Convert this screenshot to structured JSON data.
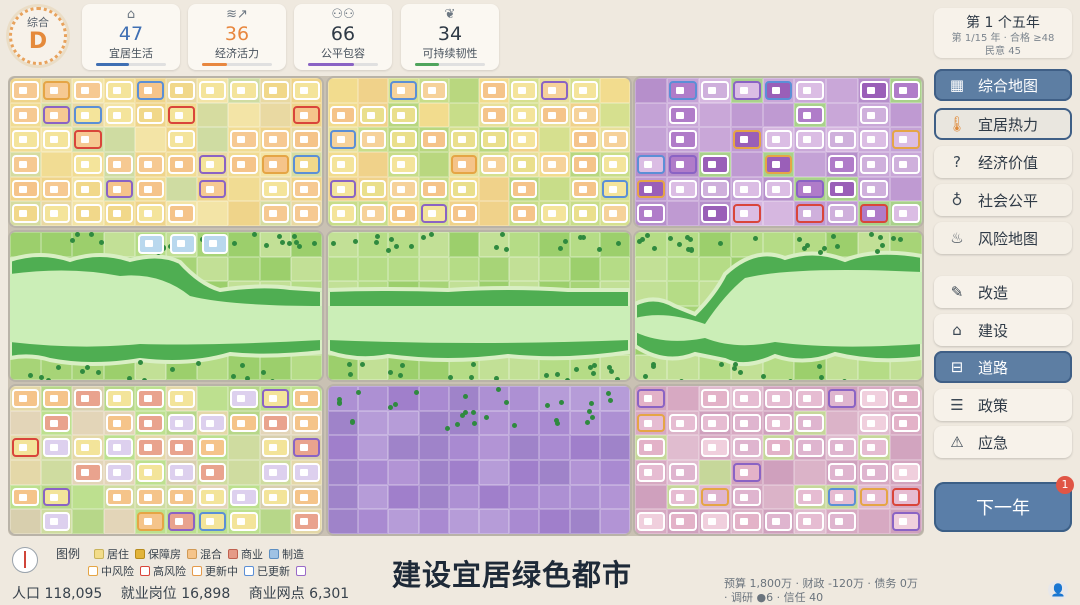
{
  "grade": {
    "label": "综合",
    "value": "D"
  },
  "stats": [
    {
      "icon": "house-icon",
      "value": "47",
      "label": "宜居生活",
      "color": "#3f6fb3",
      "level": 0.47
    },
    {
      "icon": "coins-growth-icon",
      "value": "36",
      "label": "经济活力",
      "color": "#e8873f",
      "level": 0.36
    },
    {
      "icon": "people-icon",
      "value": "66",
      "label": "公平包容",
      "color": "#8a63c4",
      "level": 0.66
    },
    {
      "icon": "leaf-icon",
      "value": "34",
      "label": "可持续韧性",
      "color": "#4fa45c",
      "level": 0.34
    }
  ],
  "period": {
    "title": "第 1 个五年",
    "subtitle": "第 1/15 年 · 合格 ≥48",
    "morale": "民意 45"
  },
  "views": [
    {
      "label": "综合地图",
      "icon": "map-icon",
      "active": true
    },
    {
      "label": "宜居热力",
      "icon": "thermometer-icon",
      "active": true
    },
    {
      "label": "经济价值",
      "icon": "question-icon",
      "active": false
    },
    {
      "label": "社会公平",
      "icon": "drops-icon",
      "active": false
    },
    {
      "label": "风险地图",
      "icon": "flood-icon",
      "active": false
    }
  ],
  "tools": [
    {
      "label": "改造",
      "icon": "pencil-icon",
      "active": false
    },
    {
      "label": "建设",
      "icon": "house-outline-icon",
      "active": false
    },
    {
      "label": "道路",
      "icon": "road-icon",
      "active": true
    },
    {
      "label": "政策",
      "icon": "policy-icon",
      "active": false
    },
    {
      "label": "应急",
      "icon": "warning-icon",
      "active": false
    }
  ],
  "next_year": {
    "label": "下一年",
    "badge": "1"
  },
  "legend": {
    "title": "图例",
    "items": [
      {
        "label": "居住",
        "color": "#f2dc8a"
      },
      {
        "label": "保障房",
        "color": "#e2b43a"
      },
      {
        "label": "混合",
        "color": "#f5c48a"
      },
      {
        "label": "商业",
        "color": "#e59a86"
      },
      {
        "label": "制造",
        "color": "#9fc2e4"
      }
    ],
    "outline_items": [
      {
        "label": "中风险",
        "color": "#e5a545"
      },
      {
        "label": "高风险",
        "color": "#d9453a"
      },
      {
        "label": "更新中",
        "color": "#e59a4a"
      },
      {
        "label": "已更新",
        "color": "#5b8fd6"
      },
      {
        "label": "",
        "color": "#9a6ac8"
      }
    ]
  },
  "tagline": "建设宜居绿色都市",
  "bottom_stats": {
    "population": "人口 118,095",
    "jobs": "就业岗位 16,898",
    "commerce": "商业网点 6,301"
  },
  "budget": "预算 1,800万 · 财政 -120万 · 债务 0万 · 调研 ●6 · 信任 40"
}
